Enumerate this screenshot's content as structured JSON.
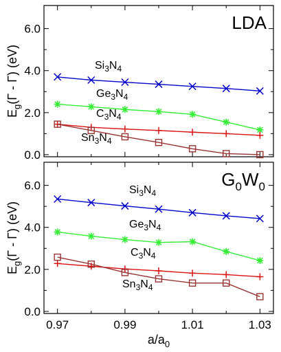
{
  "chart_data": [
    {
      "type": "line",
      "panel_label": "LDA",
      "ylabel": "E_g(Γ - Γ) (eV)",
      "xlabel": "",
      "xlim": [
        0.966,
        1.034
      ],
      "ylim": [
        -0.1,
        7.1
      ],
      "yticks": [
        0.0,
        2.0,
        4.0,
        6.0
      ],
      "ytick_labels": [
        "0.0",
        "2.0",
        "4.0",
        "6.0"
      ],
      "grid": false,
      "x": [
        0.97,
        0.98,
        0.99,
        1.0,
        1.01,
        1.02,
        1.03
      ],
      "series": [
        {
          "name": "Si3N4",
          "label_base": "Si",
          "label_sub1": "3",
          "label_mid": "N",
          "label_sub2": "4",
          "color": "#0000cc",
          "marker": "x",
          "values": [
            3.7,
            3.55,
            3.45,
            3.35,
            3.25,
            3.15,
            3.03
          ]
        },
        {
          "name": "Ge3N4",
          "label_base": "Ge",
          "label_sub1": "3",
          "label_mid": "N",
          "label_sub2": "4",
          "color": "#33ee33",
          "marker": "asterisk",
          "values": [
            2.4,
            2.28,
            2.15,
            2.05,
            1.92,
            1.55,
            1.18
          ]
        },
        {
          "name": "C3N4",
          "label_base": "C",
          "label_sub1": "3",
          "label_mid": "N",
          "label_sub2": "4",
          "color": "#dd1111",
          "marker": "plus",
          "values": [
            1.45,
            1.3,
            1.22,
            1.15,
            1.07,
            1.0,
            0.92
          ]
        },
        {
          "name": "Sn3N4",
          "label_base": "Sn",
          "label_sub1": "3",
          "label_mid": "N",
          "label_sub2": "4",
          "color": "#993333",
          "marker": "square",
          "values": [
            1.45,
            1.15,
            0.85,
            0.58,
            0.28,
            0.05,
            0.0
          ]
        }
      ]
    },
    {
      "type": "line",
      "panel_label": "G0W0",
      "panel_label_base": "G",
      "panel_label_sub1": "0",
      "panel_label_mid": "W",
      "panel_label_sub2": "0",
      "ylabel": "E_g(Γ - Γ) (eV)",
      "xlabel": "a/a0",
      "xlim": [
        0.966,
        1.034
      ],
      "ylim": [
        -0.1,
        7.1
      ],
      "yticks": [
        0.0,
        2.0,
        4.0,
        6.0
      ],
      "ytick_labels": [
        "0.0",
        "2.0",
        "4.0",
        "6.0"
      ],
      "xticks": [
        0.97,
        0.99,
        1.01,
        1.03
      ],
      "xtick_labels": [
        "0.97",
        "0.99",
        "1.01",
        "1.03"
      ],
      "grid": false,
      "x": [
        0.97,
        0.98,
        0.99,
        1.0,
        1.01,
        1.02,
        1.03
      ],
      "series": [
        {
          "name": "Si3N4",
          "label_base": "Si",
          "label_sub1": "3",
          "label_mid": "N",
          "label_sub2": "4",
          "color": "#0000cc",
          "marker": "x",
          "values": [
            5.35,
            5.18,
            5.02,
            4.87,
            4.7,
            4.55,
            4.42
          ]
        },
        {
          "name": "Ge3N4",
          "label_base": "Ge",
          "label_sub1": "3",
          "label_mid": "N",
          "label_sub2": "4",
          "color": "#33ee33",
          "marker": "asterisk",
          "values": [
            3.78,
            3.58,
            3.42,
            3.28,
            3.32,
            2.85,
            2.42
          ]
        },
        {
          "name": "C3N4",
          "label_base": "C",
          "label_sub1": "3",
          "label_mid": "N",
          "label_sub2": "4",
          "color": "#dd1111",
          "marker": "plus",
          "values": [
            2.28,
            2.15,
            2.02,
            1.93,
            1.82,
            1.75,
            1.65
          ]
        },
        {
          "name": "Sn3N4",
          "label_base": "Sn",
          "label_sub1": "3",
          "label_mid": "N",
          "label_sub2": "4",
          "color": "#993333",
          "marker": "square",
          "values": [
            2.58,
            2.25,
            1.85,
            1.55,
            1.35,
            1.35,
            0.7
          ]
        }
      ]
    }
  ],
  "ylabel_text": {
    "E": "E",
    "g": "g",
    "rest": "(Γ - Γ) (eV)"
  },
  "xlabel_text": {
    "a": "a/a",
    "sub": "0"
  }
}
